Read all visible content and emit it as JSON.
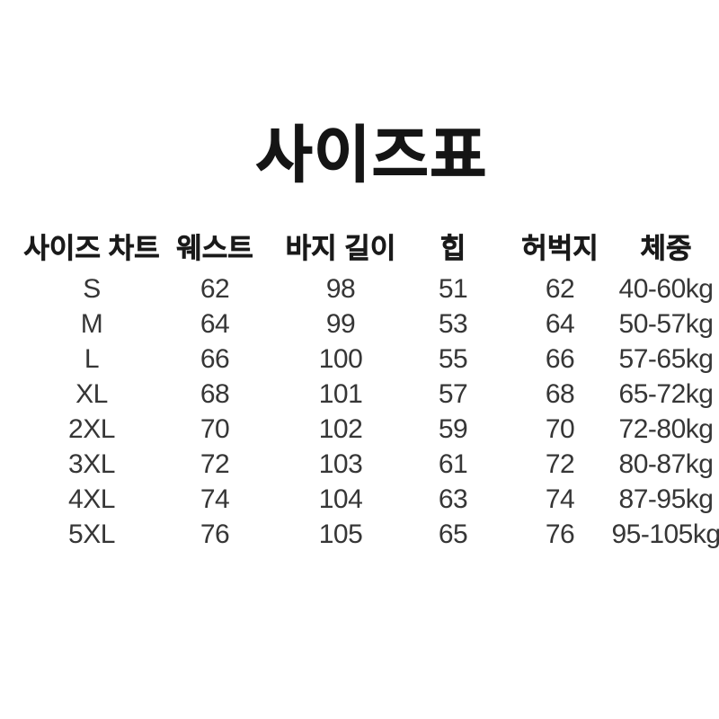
{
  "page": {
    "background": "#ffffff",
    "title_color": "#151515",
    "header_color": "#1a1a1a",
    "value_color": "#363636"
  },
  "title": "사이즈표",
  "chart_data": {
    "type": "table",
    "title": "사이즈표",
    "columns": [
      "사이즈 차트",
      "웨스트",
      "바지 길이",
      "힙",
      "허벅지",
      "체중"
    ],
    "rows": [
      [
        "S",
        "62",
        "98",
        "51",
        "62",
        "40-60kg"
      ],
      [
        "M",
        "64",
        "99",
        "53",
        "64",
        "50-57kg"
      ],
      [
        "L",
        "66",
        "100",
        "55",
        "66",
        "57-65kg"
      ],
      [
        "XL",
        "68",
        "101",
        "57",
        "68",
        "65-72kg"
      ],
      [
        "2XL",
        "70",
        "102",
        "59",
        "70",
        "72-80kg"
      ],
      [
        "3XL",
        "72",
        "103",
        "61",
        "72",
        "80-87kg"
      ],
      [
        "4XL",
        "74",
        "104",
        "63",
        "74",
        "87-95kg"
      ],
      [
        "5XL",
        "76",
        "105",
        "65",
        "76",
        "95-105kg"
      ]
    ],
    "layout": {
      "grid": false,
      "borders": "none",
      "alignment": "center"
    }
  }
}
